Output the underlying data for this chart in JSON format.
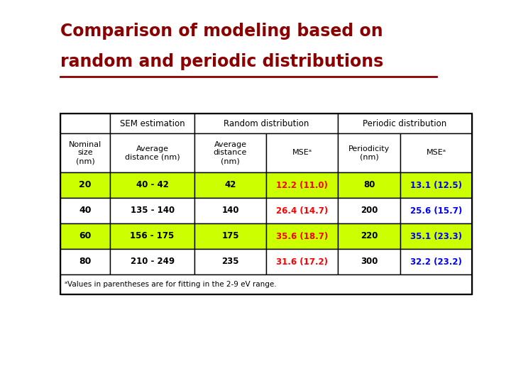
{
  "title_line1": "Comparison of modeling based on",
  "title_line2": "random and periodic distributions",
  "title_color": "#8B0000",
  "background_color": "#FFFFFF",
  "footnote": "ᵃValues in parentheses are for fitting in the 2-9 eV range.",
  "highlight_color": "#CCFF00",
  "mse_rand_color": "#FF0000",
  "mse_per_color": "#0000FF",
  "normal_text_color": "#000000",
  "data_rows": [
    {
      "nominal": "20",
      "sem": "40 - 42",
      "avg_dist": "42",
      "mse_rand": "12.2 (11.0)",
      "periodicity": "80",
      "mse_per": "13.1 (12.5)",
      "highlight": true
    },
    {
      "nominal": "40",
      "sem": "135 - 140",
      "avg_dist": "140",
      "mse_rand": "26.4 (14.7)",
      "periodicity": "200",
      "mse_per": "25.6 (15.7)",
      "highlight": false
    },
    {
      "nominal": "60",
      "sem": "156 - 175",
      "avg_dist": "175",
      "mse_rand": "35.6 (18.7)",
      "periodicity": "220",
      "mse_per": "35.1 (23.3)",
      "highlight": true
    },
    {
      "nominal": "80",
      "sem": "210 - 249",
      "avg_dist": "235",
      "mse_rand": "31.6 (17.2)",
      "periodicity": "300",
      "mse_per": "32.2 (23.2)",
      "highlight": false
    }
  ]
}
